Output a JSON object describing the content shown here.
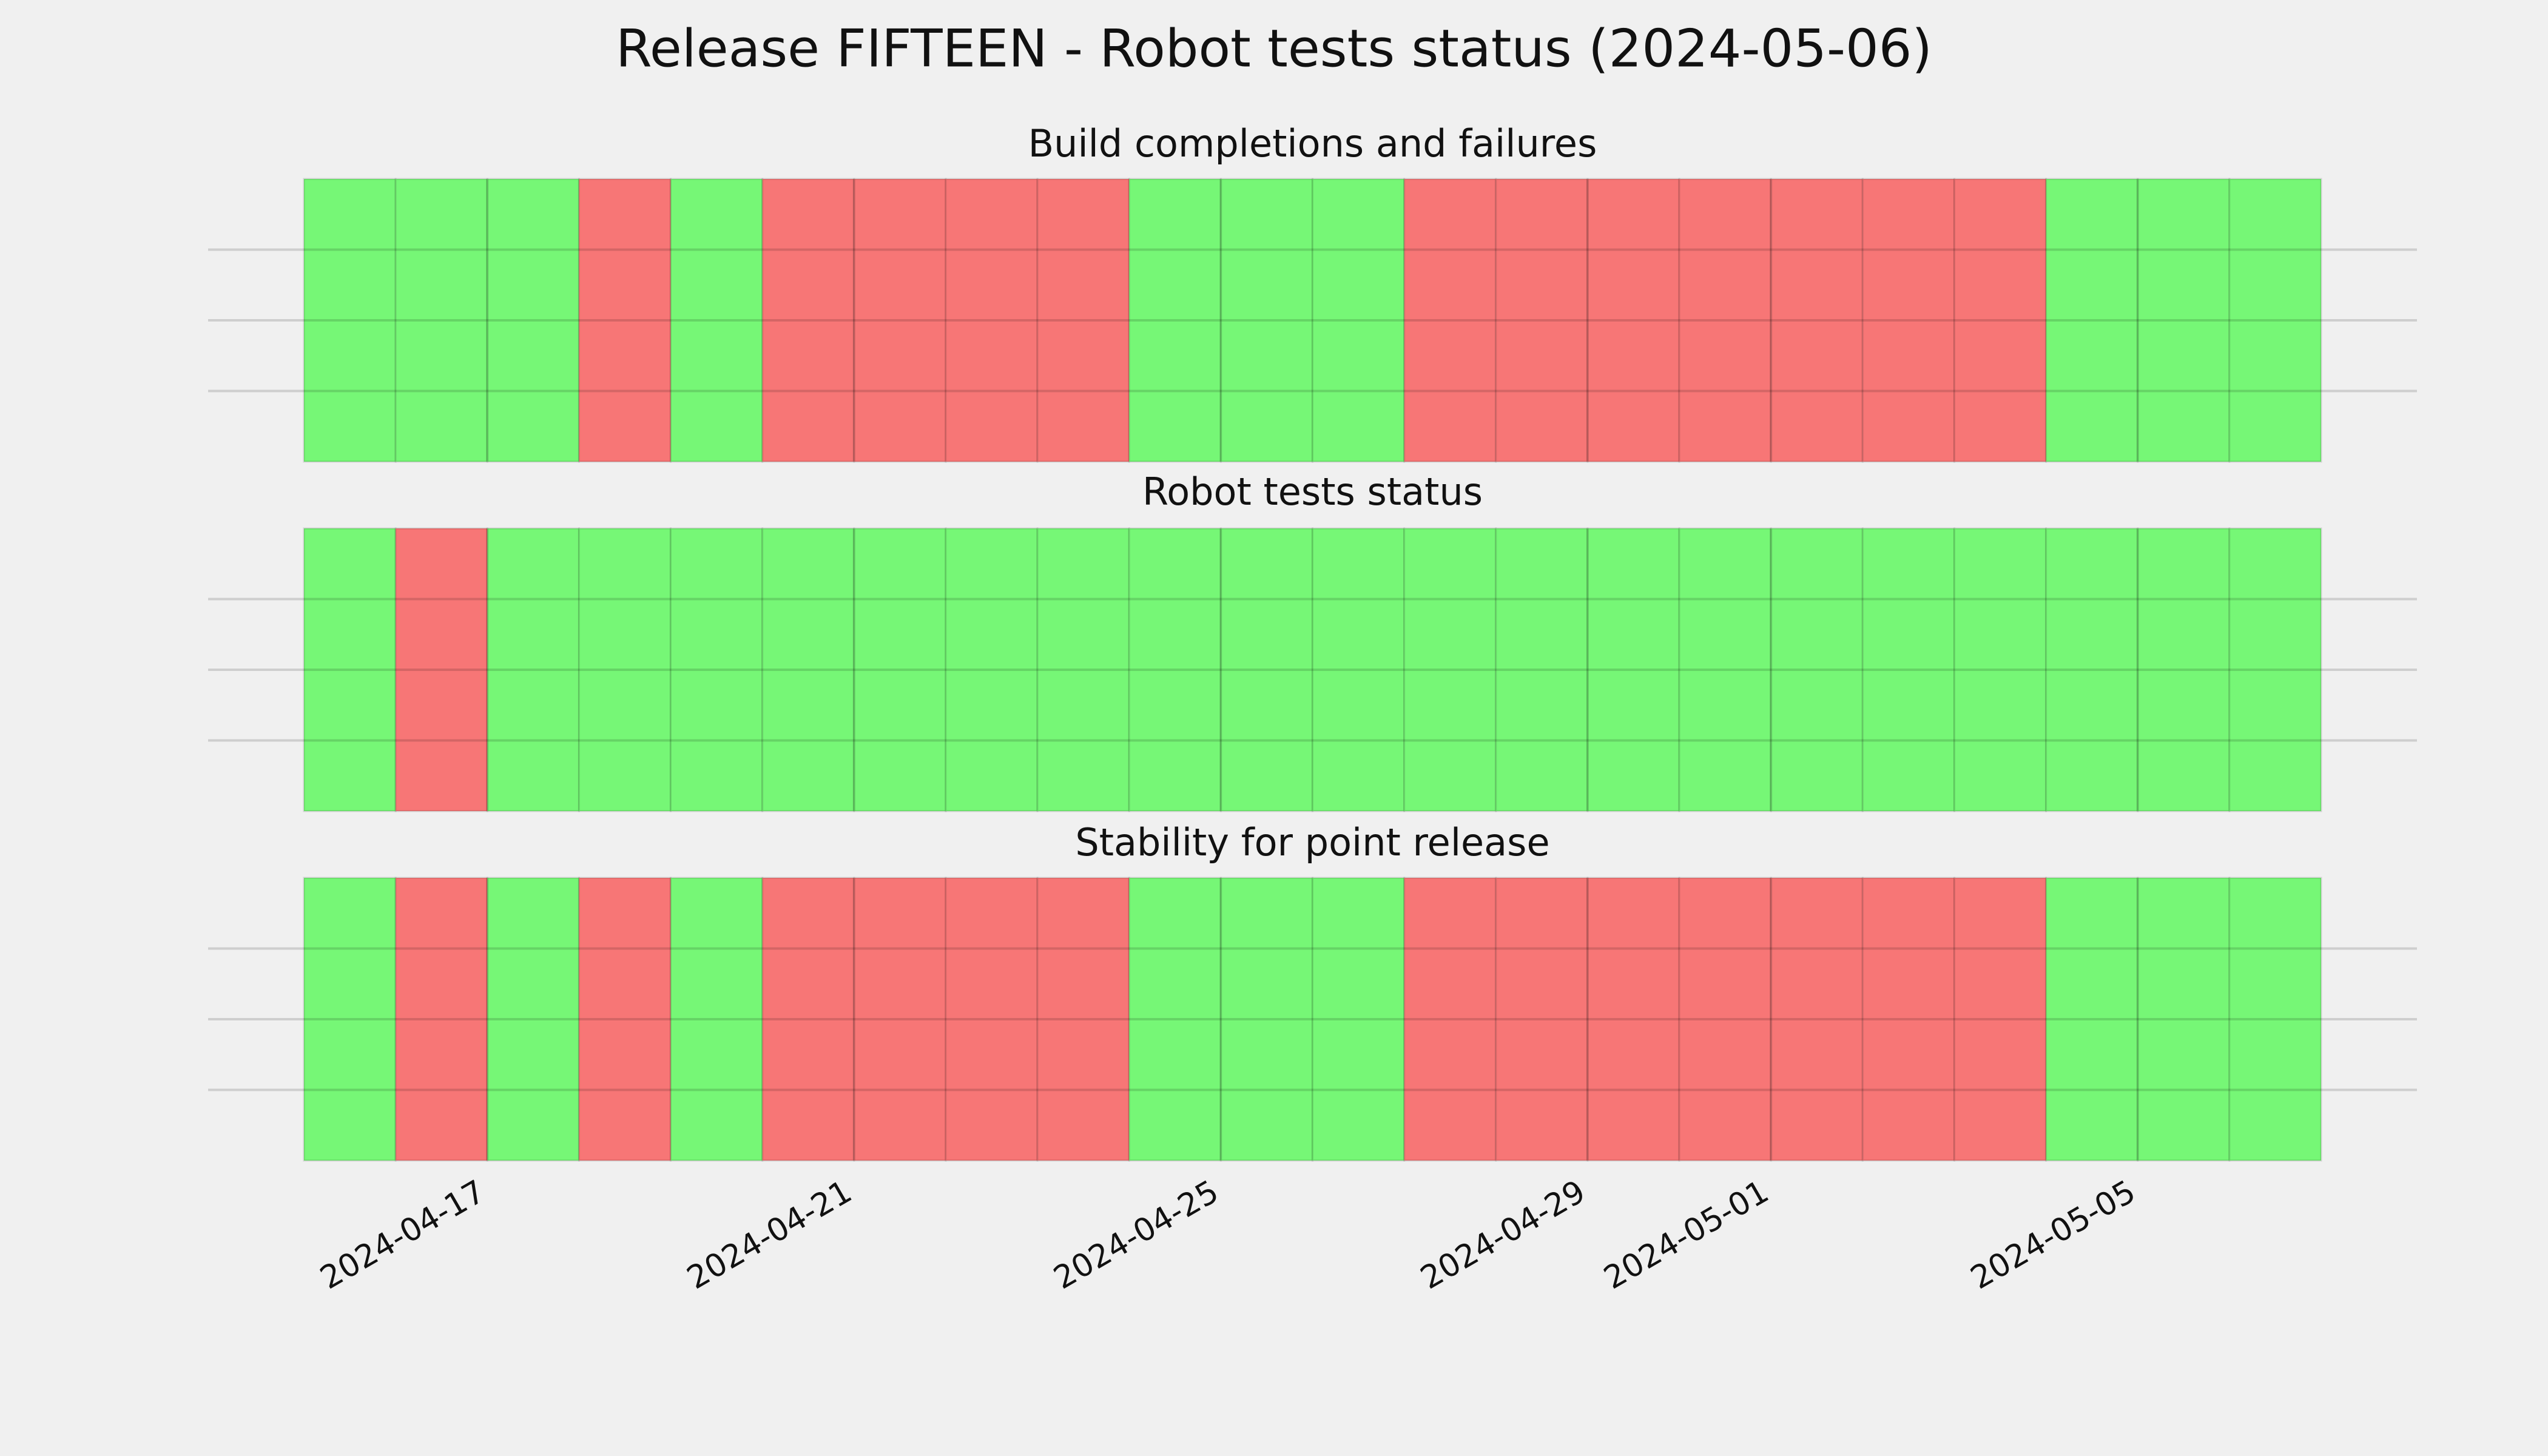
{
  "title": "Release FIFTEEN - Robot tests status (2024-05-06)",
  "chart_data": [
    {
      "type": "timeline",
      "title": "Build completions and failures",
      "x": [
        "2024-04-15",
        "2024-04-16",
        "2024-04-17",
        "2024-04-18",
        "2024-04-19",
        "2024-04-20",
        "2024-04-21",
        "2024-04-22",
        "2024-04-23",
        "2024-04-24",
        "2024-04-25",
        "2024-04-26",
        "2024-04-27",
        "2024-04-28",
        "2024-04-29",
        "2024-04-30",
        "2024-05-01",
        "2024-05-02",
        "2024-05-03",
        "2024-05-04",
        "2024-05-05",
        "2024-05-06"
      ],
      "values": [
        1,
        1,
        1,
        0,
        1,
        0,
        0,
        0,
        0,
        1,
        1,
        1,
        0,
        0,
        0,
        0,
        0,
        0,
        0,
        1,
        1,
        1
      ],
      "colors": [
        "#f77676",
        "#76f776"
      ],
      "xlim": [
        "2024-04-15",
        "2024-05-07"
      ],
      "xticks": [
        "2024-04-17",
        "2024-04-21",
        "2024-04-25",
        "2024-04-29",
        "2024-05-01",
        "2024-05-05"
      ],
      "ylim": [
        0,
        1
      ],
      "yticks": [
        0.25,
        0.5,
        0.75
      ],
      "grid": true,
      "show_xtick_labels": false
    },
    {
      "type": "timeline",
      "title": "Robot tests status",
      "x": [
        "2024-04-15",
        "2024-04-16",
        "2024-04-17",
        "2024-04-18",
        "2024-04-19",
        "2024-04-20",
        "2024-04-21",
        "2024-04-22",
        "2024-04-23",
        "2024-04-24",
        "2024-04-25",
        "2024-04-26",
        "2024-04-27",
        "2024-04-28",
        "2024-04-29",
        "2024-04-30",
        "2024-05-01",
        "2024-05-02",
        "2024-05-03",
        "2024-05-04",
        "2024-05-05",
        "2024-05-06"
      ],
      "values": [
        1,
        0,
        1,
        1,
        1,
        1,
        1,
        1,
        1,
        1,
        1,
        1,
        1,
        1,
        1,
        1,
        1,
        1,
        1,
        1,
        1,
        1
      ],
      "colors": [
        "#f77676",
        "#76f776"
      ],
      "xlim": [
        "2024-04-15",
        "2024-05-07"
      ],
      "xticks": [
        "2024-04-17",
        "2024-04-21",
        "2024-04-25",
        "2024-04-29",
        "2024-05-01",
        "2024-05-05"
      ],
      "ylim": [
        0,
        1
      ],
      "yticks": [
        0.25,
        0.5,
        0.75
      ],
      "grid": true,
      "show_xtick_labels": false
    },
    {
      "type": "timeline",
      "title": "Stability for point release",
      "x": [
        "2024-04-15",
        "2024-04-16",
        "2024-04-17",
        "2024-04-18",
        "2024-04-19",
        "2024-04-20",
        "2024-04-21",
        "2024-04-22",
        "2024-04-23",
        "2024-04-24",
        "2024-04-25",
        "2024-04-26",
        "2024-04-27",
        "2024-04-28",
        "2024-04-29",
        "2024-04-30",
        "2024-05-01",
        "2024-05-02",
        "2024-05-03",
        "2024-05-04",
        "2024-05-05",
        "2024-05-06"
      ],
      "values": [
        1,
        0,
        1,
        0,
        1,
        0,
        0,
        0,
        0,
        1,
        1,
        1,
        0,
        0,
        0,
        0,
        0,
        0,
        0,
        1,
        1,
        1
      ],
      "colors": [
        "#f77676",
        "#76f776"
      ],
      "xlim": [
        "2024-04-15",
        "2024-05-07"
      ],
      "xticks": [
        "2024-04-17",
        "2024-04-21",
        "2024-04-25",
        "2024-04-29",
        "2024-05-01",
        "2024-05-05"
      ],
      "ylim": [
        0,
        1
      ],
      "yticks": [
        0.25,
        0.5,
        0.75
      ],
      "grid": true,
      "show_xtick_labels": true
    }
  ]
}
